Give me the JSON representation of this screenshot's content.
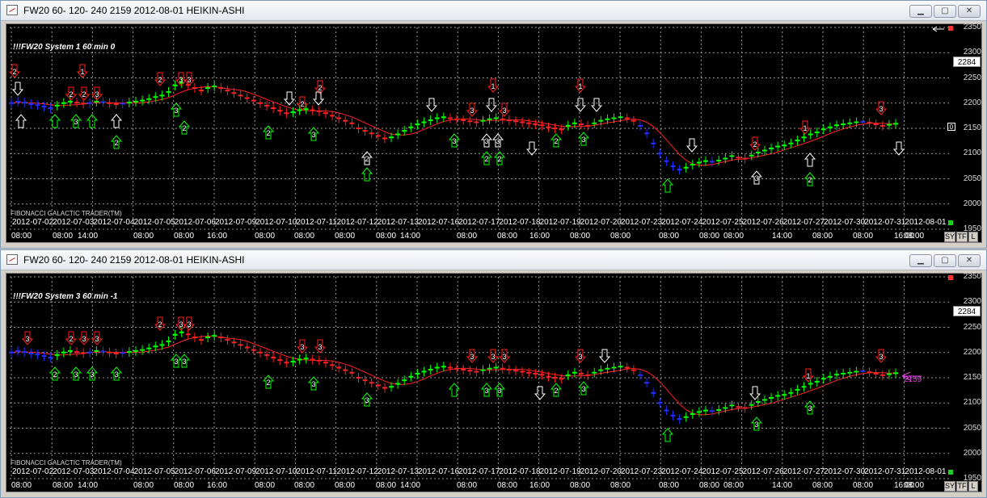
{
  "windows": [
    {
      "title": "FW20  60-  120-  240 2159 2012-08-01 HEIKIN-ASHI",
      "system_label": "!!!FW20 System 1 60 min 0",
      "footer_label": "FIBONACCI GALACTIC TRADER(TM)",
      "price_box": "2284",
      "side_marker": "0",
      "y_ticks": [
        "2350",
        "2300",
        "2250",
        "2200",
        "2150",
        "2100",
        "2050",
        "2000",
        "1950"
      ],
      "date_labels": [
        "2012-07-02",
        "2012-07-03",
        "2012-07-04",
        "2012-07-05",
        "2012-07-06",
        "2012-07-09",
        "2012-07-10",
        "2012-07-11",
        "2012-07-12",
        "2012-07-13",
        "2012-07-16",
        "2012-07-17",
        "2012-07-18",
        "2012-07-19",
        "2012-07-20",
        "2012-07-23",
        "2012-07-24",
        "2012-07-25",
        "2012-07-26",
        "2012-07-27",
        "2012-07-30",
        "2012-07-31",
        "2012-08-01"
      ],
      "time_labels": [
        "08:00",
        "08:00",
        "14:00",
        "08:00",
        "08:00",
        "16:00",
        "08:00",
        "08:00",
        "08:00",
        "08:00",
        "14:00",
        "08:00",
        "08:00",
        "16:00",
        "08:00",
        "08:00",
        "08:00",
        "08:00",
        "08:00",
        "14:00",
        "08:00",
        "08:00",
        "16:00",
        "08:00"
      ],
      "buttons": [
        "SY",
        "TF",
        "L"
      ],
      "last_price_label": ""
    },
    {
      "title": "FW20  60-  120-  240 2159 2012-08-01 HEIKIN-ASHI",
      "system_label": "!!!FW20 System 3 60 min -1",
      "footer_label": "FIBONACCI GALACTIC TRADER(TM)",
      "price_box": "2284",
      "side_marker": "",
      "y_ticks": [
        "2350",
        "2300",
        "2250",
        "2200",
        "2150",
        "2100",
        "2050",
        "2000",
        "1950"
      ],
      "date_labels": [
        "2012-07-02",
        "2012-07-03",
        "2012-07-04",
        "2012-07-05",
        "2012-07-06",
        "2012-07-09",
        "2012-07-10",
        "2012-07-11",
        "2012-07-12",
        "2012-07-13",
        "2012-07-16",
        "2012-07-17",
        "2012-07-18",
        "2012-07-19",
        "2012-07-20",
        "2012-07-23",
        "2012-07-24",
        "2012-07-25",
        "2012-07-26",
        "2012-07-27",
        "2012-07-30",
        "2012-07-31",
        "2012-08-01"
      ],
      "time_labels": [
        "08:00",
        "08:00",
        "14:00",
        "08:00",
        "08:00",
        "16:00",
        "08:00",
        "08:00",
        "08:00",
        "08:00",
        "14:00",
        "08:00",
        "08:00",
        "16:00",
        "08:00",
        "08:00",
        "08:00",
        "08:00",
        "08:00",
        "14:00",
        "08:00",
        "08:00",
        "16:00",
        "08:00"
      ],
      "buttons": [
        "SY",
        "TF",
        "L"
      ],
      "last_price_label": "2159"
    }
  ],
  "chart_data": {
    "type": "line",
    "title": "",
    "ylim": [
      1950,
      2350
    ],
    "series": [
      {
        "values": [
          2200,
          2203,
          2201,
          2198,
          2196,
          2193,
          2190,
          2195,
          2200,
          2203,
          2201,
          2199,
          2200,
          2203,
          2202,
          2200,
          2198,
          2199,
          2201,
          2203,
          2205,
          2208,
          2212,
          2215,
          2222,
          2235,
          2240,
          2236,
          2230,
          2225,
          2230,
          2233,
          2230,
          2225,
          2220,
          2215,
          2210,
          2205,
          2200,
          2195,
          2190,
          2185,
          2180,
          2182,
          2186,
          2188,
          2186,
          2184,
          2180,
          2175,
          2170,
          2165,
          2160,
          2150,
          2145,
          2140,
          2135,
          2130,
          2132,
          2138,
          2145,
          2152,
          2158,
          2162,
          2166,
          2170,
          2172,
          2170,
          2168,
          2166,
          2164,
          2162,
          2165,
          2168,
          2170,
          2168,
          2166,
          2164,
          2162,
          2160,
          2158,
          2156,
          2152,
          2150,
          2148,
          2155,
          2160,
          2158,
          2155,
          2160,
          2165,
          2168,
          2170,
          2172,
          2170,
          2165,
          2155,
          2140,
          2120,
          2100,
          2085,
          2075,
          2068,
          2072,
          2078,
          2082,
          2085,
          2084,
          2086,
          2090,
          2095,
          2092,
          2090,
          2096,
          2102,
          2106,
          2110,
          2114,
          2116,
          2120,
          2126,
          2132,
          2138,
          2142,
          2148,
          2152,
          2156,
          2158,
          2160,
          2162,
          2163,
          2161,
          2158,
          2155,
          2157,
          2159
        ],
        "colors": [
          "blue",
          "red",
          "green"
        ]
      }
    ]
  },
  "colors": {
    "up": "#00ff00",
    "down": "#ff2020",
    "neutral": "#2030ff",
    "ma": "#ff2020",
    "grid": "#9a9a9a",
    "buy_arrow": "#00ff00",
    "sell_arrow": "#ff2020",
    "exit_arrow": "#ffffff"
  }
}
